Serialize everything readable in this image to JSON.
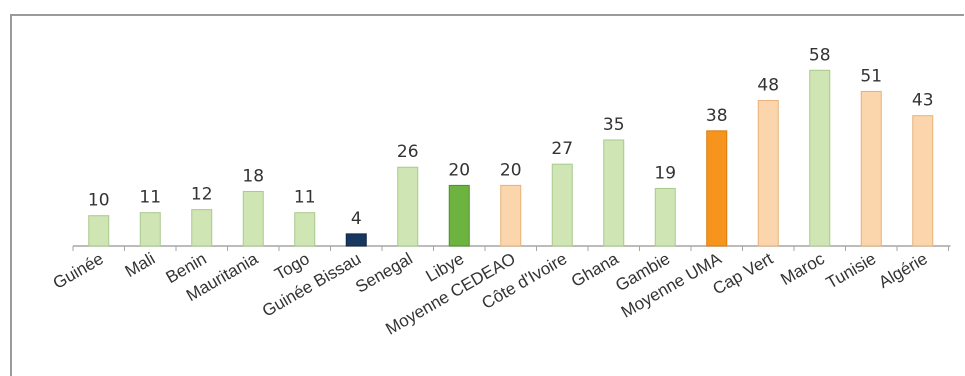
{
  "chart_data": {
    "type": "bar",
    "title": "",
    "xlabel": "",
    "ylabel": "",
    "ylim": [
      0,
      60
    ],
    "grid": false,
    "legend": "none",
    "categories": [
      "Guinée",
      "Mali",
      "Benin",
      "Mauritania",
      "Togo",
      "Guinée Bissau",
      "Senegal",
      "Libye",
      "Moyenne CEDEAO",
      "Côte d'Ivoire",
      "Ghana",
      "Gambie",
      "Moyenne UMA",
      "Cap Vert",
      "Maroc",
      "Tunisie",
      "Algérie"
    ],
    "values": [
      10,
      11,
      12,
      18,
      11,
      4,
      26,
      20,
      20,
      27,
      35,
      19,
      38,
      48,
      58,
      51,
      43
    ],
    "colors": [
      "#cfe5b4",
      "#cfe5b4",
      "#cfe5b4",
      "#cfe5b4",
      "#cfe5b4",
      "#17375e",
      "#cfe5b4",
      "#6db33f",
      "#fbd5ac",
      "#cfe5b4",
      "#cfe5b4",
      "#cfe5b4",
      "#f7941d",
      "#fbd5ac",
      "#cfe5b4",
      "#fbd5ac",
      "#fbd5ac"
    ],
    "bar_outlines": [
      "#a9c98d",
      "#a9c98d",
      "#a9c98d",
      "#a9c98d",
      "#a9c98d",
      "#0f2540",
      "#a9c98d",
      "#4f8f2a",
      "#e8b07a",
      "#a9c98d",
      "#a9c98d",
      "#a9c98d",
      "#d87a0c",
      "#e8b07a",
      "#a9c98d",
      "#e8b07a",
      "#e8b07a"
    ]
  }
}
